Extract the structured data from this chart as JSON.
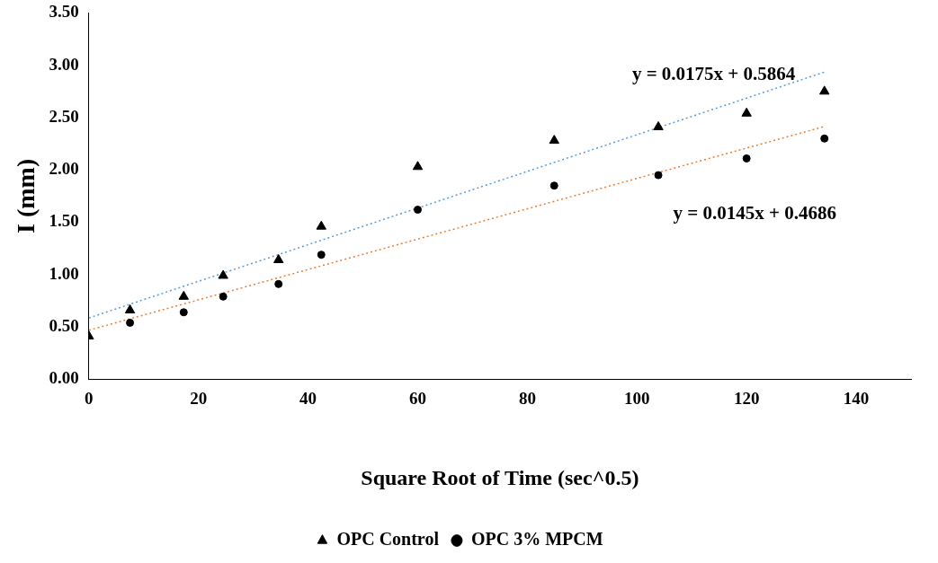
{
  "chart_data": {
    "type": "scatter",
    "xlabel": "Square Root of Time (sec^0.5)",
    "ylabel": "I (mm)",
    "x": [
      0,
      7.5,
      17.3,
      24.5,
      34.6,
      42.4,
      60,
      84.9,
      103.9,
      120,
      134.2
    ],
    "xlim": [
      0,
      150
    ],
    "xticks": [
      0,
      20,
      40,
      60,
      80,
      100,
      120,
      140
    ],
    "ylim": [
      0,
      3.5
    ],
    "yticks": [
      {
        "value": 0,
        "label": "0.00"
      },
      {
        "value": 0.5,
        "label": "0.50"
      },
      {
        "value": 1,
        "label": "1.00"
      },
      {
        "value": 1.5,
        "label": "1.50"
      },
      {
        "value": 2,
        "label": "2.00"
      },
      {
        "value": 2.5,
        "label": "2.50"
      },
      {
        "value": 3,
        "label": "3.00"
      },
      {
        "value": 3.5,
        "label": "3.50"
      }
    ],
    "grid": false,
    "legend": "bottom",
    "series": [
      {
        "name": "OPC Control",
        "color": "#000000",
        "marker": "triangle",
        "values": [
          0.41,
          0.66,
          0.79,
          0.99,
          1.14,
          1.46,
          2.03,
          2.28,
          2.41,
          2.54,
          2.75
        ]
      },
      {
        "name": "OPC 3% MPCM",
        "color": "#000000",
        "marker": "circle",
        "values": [
          null,
          0.54,
          0.64,
          0.79,
          0.91,
          1.19,
          1.62,
          1.85,
          1.95,
          2.11,
          2.3
        ]
      },
      {
        "type": "line",
        "color": "#5b9bd5",
        "line_style": "dotted",
        "marker": "none",
        "values": [
          0.586,
          null,
          null,
          null,
          null,
          null,
          null,
          null,
          null,
          null,
          2.935
        ]
      },
      {
        "type": "line",
        "color": "#ed7d31",
        "line_style": "dotted",
        "marker": "none",
        "values": [
          0.469,
          null,
          null,
          null,
          null,
          null,
          null,
          null,
          null,
          null,
          2.415
        ]
      }
    ],
    "annotations": [
      "y = 0.0175x + 0.5864",
      "y = 0.0145x + 0.4686"
    ]
  }
}
